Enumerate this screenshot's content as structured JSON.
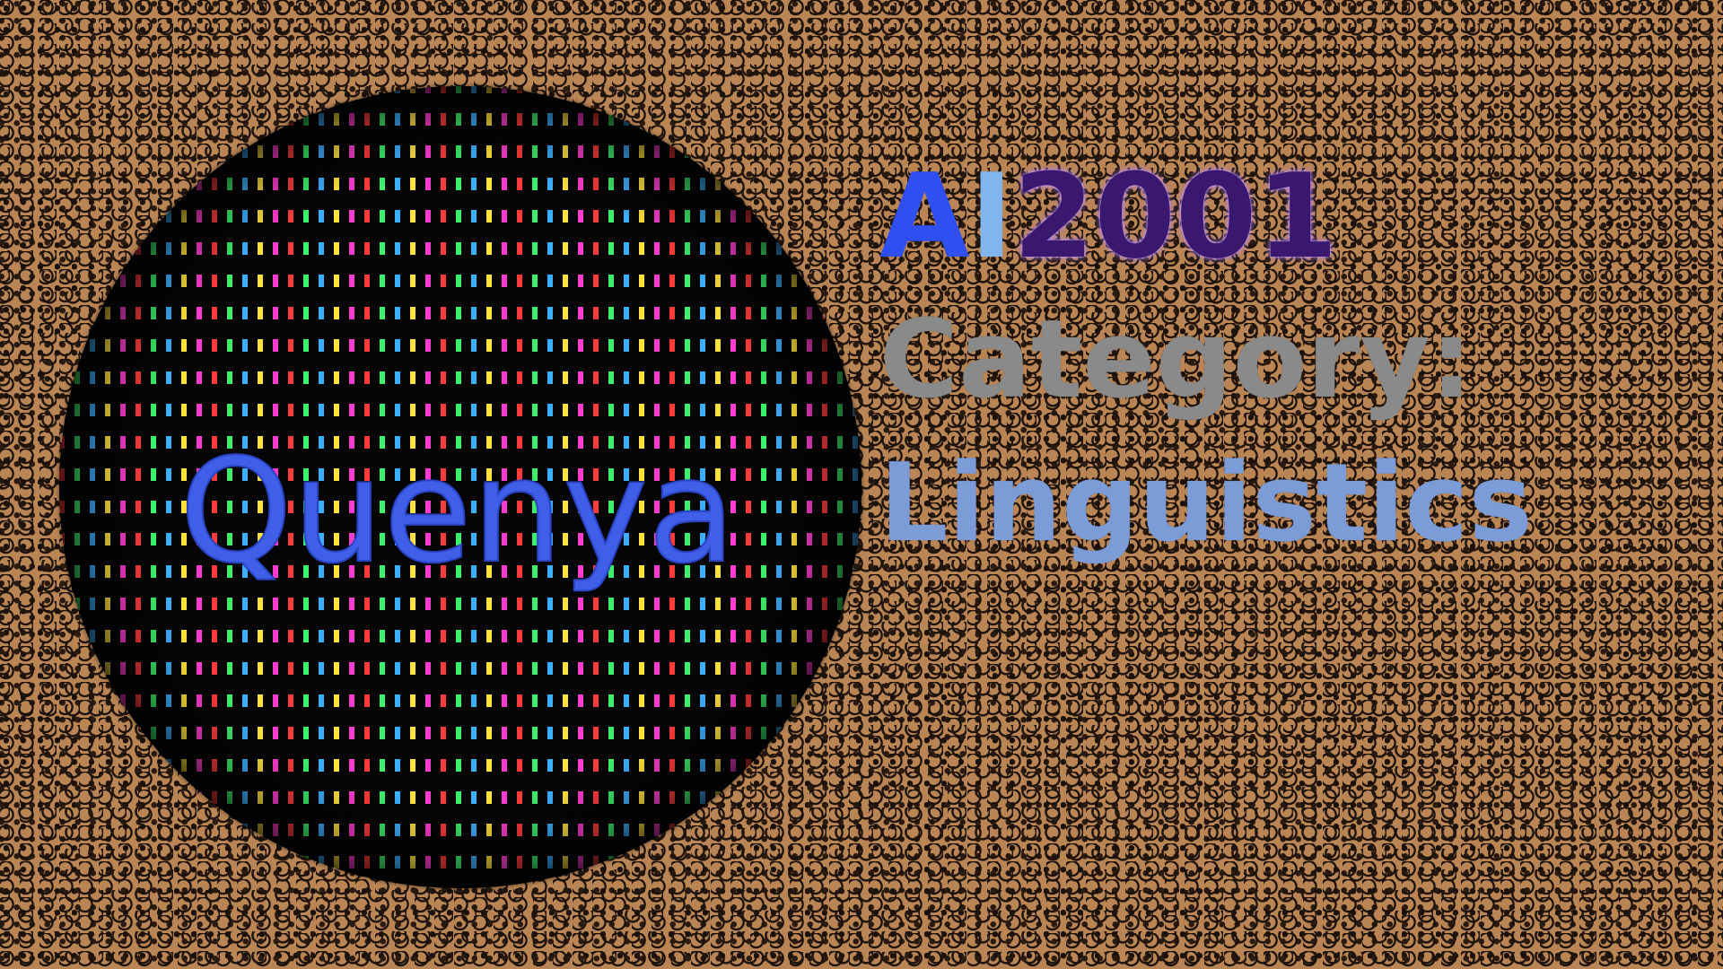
{
  "sphere": {
    "label": "Quenya"
  },
  "title": {
    "ai_a": "A",
    "ai_i": "I",
    "ai_num": "2001",
    "category_label": "Category:",
    "category_value": "Linguistics"
  },
  "colors": {
    "background": "#b98555",
    "quenya_text": "#3f5fe8",
    "ai_a": "#2f4ff0",
    "ai_i": "#7fb6ee",
    "ai_num": "#3b1870",
    "category_label": "#8a8a8a",
    "category_value": "#7c9cd8"
  }
}
